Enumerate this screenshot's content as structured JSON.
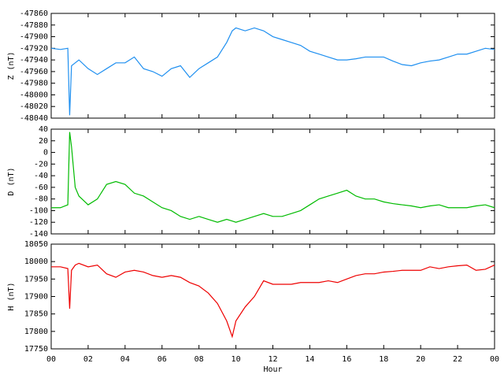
{
  "chart_data": [
    {
      "type": "line",
      "ylabel": "Z (nT)",
      "xlim": [
        0,
        24
      ],
      "ylim": [
        -48040,
        -47860
      ],
      "yticks": [
        -47860,
        -47880,
        -47900,
        -47920,
        -47940,
        -47960,
        -47980,
        -48000,
        -48020,
        -48040
      ],
      "x": [
        0,
        0.5,
        0.9,
        1,
        1.1,
        1.3,
        1.5,
        2,
        2.5,
        3,
        3.5,
        4,
        4.5,
        5,
        5.5,
        6,
        6.5,
        7,
        7.5,
        8,
        8.5,
        9,
        9.5,
        9.8,
        10,
        10.5,
        11,
        11.5,
        12,
        12.5,
        13,
        13.5,
        14,
        14.5,
        15,
        15.5,
        16,
        16.5,
        17,
        17.5,
        18,
        18.5,
        19,
        19.5,
        20,
        20.5,
        21,
        21.5,
        22,
        22.5,
        23,
        23.5,
        24
      ],
      "color": "#1e8ff0",
      "values": [
        -47920,
        -47922,
        -47920,
        -48035,
        -47950,
        -47945,
        -47940,
        -47955,
        -47965,
        -47955,
        -47945,
        -47945,
        -47935,
        -47955,
        -47960,
        -47968,
        -47955,
        -47950,
        -47970,
        -47955,
        -47945,
        -47935,
        -47910,
        -47890,
        -47885,
        -47890,
        -47885,
        -47890,
        -47900,
        -47905,
        -47910,
        -47915,
        -47925,
        -47930,
        -47935,
        -47940,
        -47940,
        -47938,
        -47935,
        -47935,
        -47935,
        -47942,
        -47948,
        -47950,
        -47945,
        -47942,
        -47940,
        -47935,
        -47930,
        -47930,
        -47925,
        -47920,
        -47922
      ]
    },
    {
      "type": "line",
      "ylabel": "D (nT)",
      "xlim": [
        0,
        24
      ],
      "ylim": [
        -140,
        40
      ],
      "yticks": [
        40,
        20,
        0,
        -20,
        -40,
        -60,
        -80,
        -100,
        -120,
        -140
      ],
      "x": [
        0,
        0.5,
        0.9,
        1,
        1.1,
        1.3,
        1.5,
        2,
        2.5,
        3,
        3.5,
        4,
        4.5,
        5,
        5.5,
        6,
        6.5,
        7,
        7.5,
        8,
        8.5,
        9,
        9.5,
        9.8,
        10,
        10.5,
        11,
        11.5,
        12,
        12.5,
        13,
        13.5,
        14,
        14.5,
        15,
        15.5,
        16,
        16.5,
        17,
        17.5,
        18,
        18.5,
        19,
        19.5,
        20,
        20.5,
        21,
        21.5,
        22,
        22.5,
        23,
        23.5,
        24
      ],
      "color": "#00bb00",
      "values": [
        -95,
        -95,
        -90,
        35,
        10,
        -60,
        -75,
        -90,
        -80,
        -55,
        -50,
        -55,
        -70,
        -75,
        -85,
        -95,
        -100,
        -110,
        -115,
        -110,
        -115,
        -120,
        -115,
        -118,
        -120,
        -115,
        -110,
        -105,
        -110,
        -110,
        -105,
        -100,
        -90,
        -80,
        -75,
        -70,
        -65,
        -75,
        -80,
        -80,
        -85,
        -88,
        -90,
        -92,
        -95,
        -92,
        -90,
        -95,
        -95,
        -95,
        -92,
        -90,
        -95
      ]
    },
    {
      "type": "line",
      "ylabel": "H (nT)",
      "xlabel": "Hour",
      "xlim": [
        0,
        24
      ],
      "ylim": [
        17750,
        18050
      ],
      "yticks": [
        18050,
        18000,
        17950,
        17900,
        17850,
        17800,
        17750
      ],
      "xticks": [
        {
          "value": 0,
          "label": "00"
        },
        {
          "value": 2,
          "label": "02"
        },
        {
          "value": 4,
          "label": "04"
        },
        {
          "value": 6,
          "label": "06"
        },
        {
          "value": 8,
          "label": "08"
        },
        10,
        12,
        14,
        16,
        18,
        20,
        22,
        {
          "value": 24,
          "label": "00"
        }
      ],
      "x": [
        0,
        0.5,
        0.9,
        1,
        1.1,
        1.3,
        1.5,
        2,
        2.5,
        3,
        3.5,
        4,
        4.5,
        5,
        5.5,
        6,
        6.5,
        7,
        7.5,
        8,
        8.5,
        9,
        9.5,
        9.8,
        10,
        10.5,
        11,
        11.5,
        12,
        12.5,
        13,
        13.5,
        14,
        14.5,
        15,
        15.5,
        16,
        16.5,
        17,
        17.5,
        18,
        18.5,
        19,
        19.5,
        20,
        20.5,
        21,
        21.5,
        22,
        22.5,
        23,
        23.5,
        24
      ],
      "color": "#ee0000",
      "values": [
        17985,
        17985,
        17980,
        17865,
        17975,
        17990,
        17995,
        17985,
        17990,
        17965,
        17955,
        17970,
        17975,
        17970,
        17960,
        17955,
        17960,
        17955,
        17940,
        17930,
        17910,
        17880,
        17830,
        17785,
        17830,
        17870,
        17900,
        17945,
        17935,
        17935,
        17935,
        17940,
        17940,
        17940,
        17945,
        17940,
        17950,
        17960,
        17965,
        17965,
        17970,
        17972,
        17975,
        17975,
        17975,
        17985,
        17980,
        17985,
        17988,
        17990,
        17975,
        17978,
        17990
      ]
    }
  ]
}
